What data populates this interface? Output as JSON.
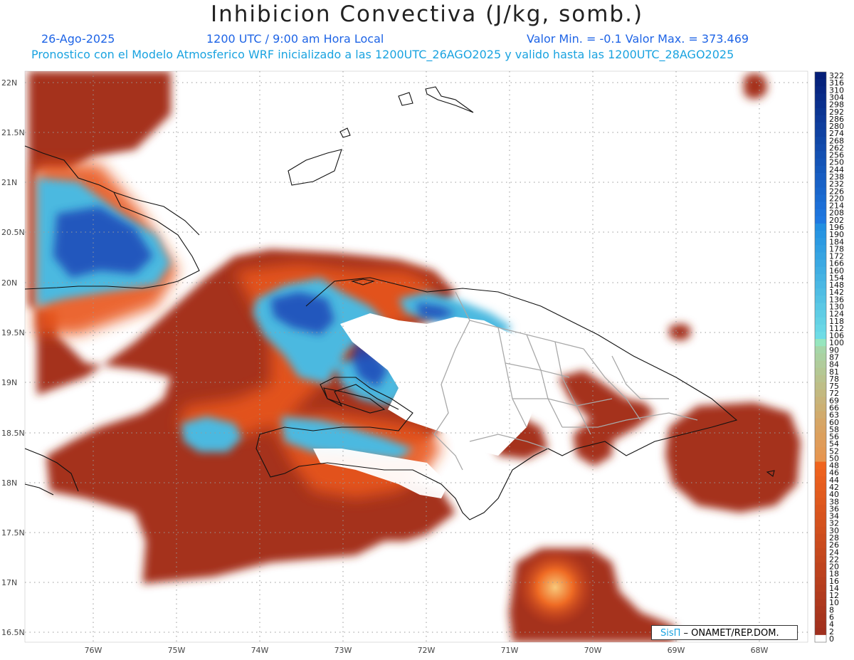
{
  "header": {
    "title": "Inhibicion Convectiva (J/kg, somb.)",
    "date": "26-Ago-2025",
    "time": "1200 UTC / 9:00 am Hora Local",
    "minmax": "Valor Min. = -0.1  Valor Max. = 373.469",
    "description": "Pronostico con el Modelo Atmosferico WRF inicializado a las 1200UTC_26AGO2025 y valido hasta las  1200UTC_28AGO2025"
  },
  "axes": {
    "lat_labels": [
      "22N",
      "21.5N",
      "21N",
      "20.5N",
      "20N",
      "19.5N",
      "19N",
      "18.5N",
      "18N",
      "17.5N",
      "17N",
      "16.5N"
    ],
    "lon_labels": [
      "76W",
      "75W",
      "74W",
      "73W",
      "72W",
      "71W",
      "70W",
      "69W",
      "68W"
    ]
  },
  "colorbar": {
    "labels": [
      "322",
      "316",
      "310",
      "304",
      "298",
      "292",
      "286",
      "280",
      "274",
      "268",
      "262",
      "256",
      "250",
      "244",
      "238",
      "232",
      "226",
      "220",
      "214",
      "208",
      "202",
      "196",
      "190",
      "184",
      "178",
      "172",
      "166",
      "160",
      "154",
      "148",
      "142",
      "136",
      "130",
      "124",
      "118",
      "112",
      "106",
      "100",
      "90",
      "87",
      "84",
      "81",
      "78",
      "75",
      "72",
      "69",
      "66",
      "63",
      "60",
      "58",
      "56",
      "54",
      "52",
      "50",
      "48",
      "46",
      "44",
      "42",
      "40",
      "38",
      "36",
      "34",
      "32",
      "30",
      "28",
      "26",
      "24",
      "22",
      "20",
      "18",
      "16",
      "14",
      "12",
      "10",
      "8",
      "6",
      "4",
      "2",
      "0"
    ]
  },
  "credit": {
    "brand": "SisΠ",
    "text": " – ONAMET/REP.DOM."
  }
}
